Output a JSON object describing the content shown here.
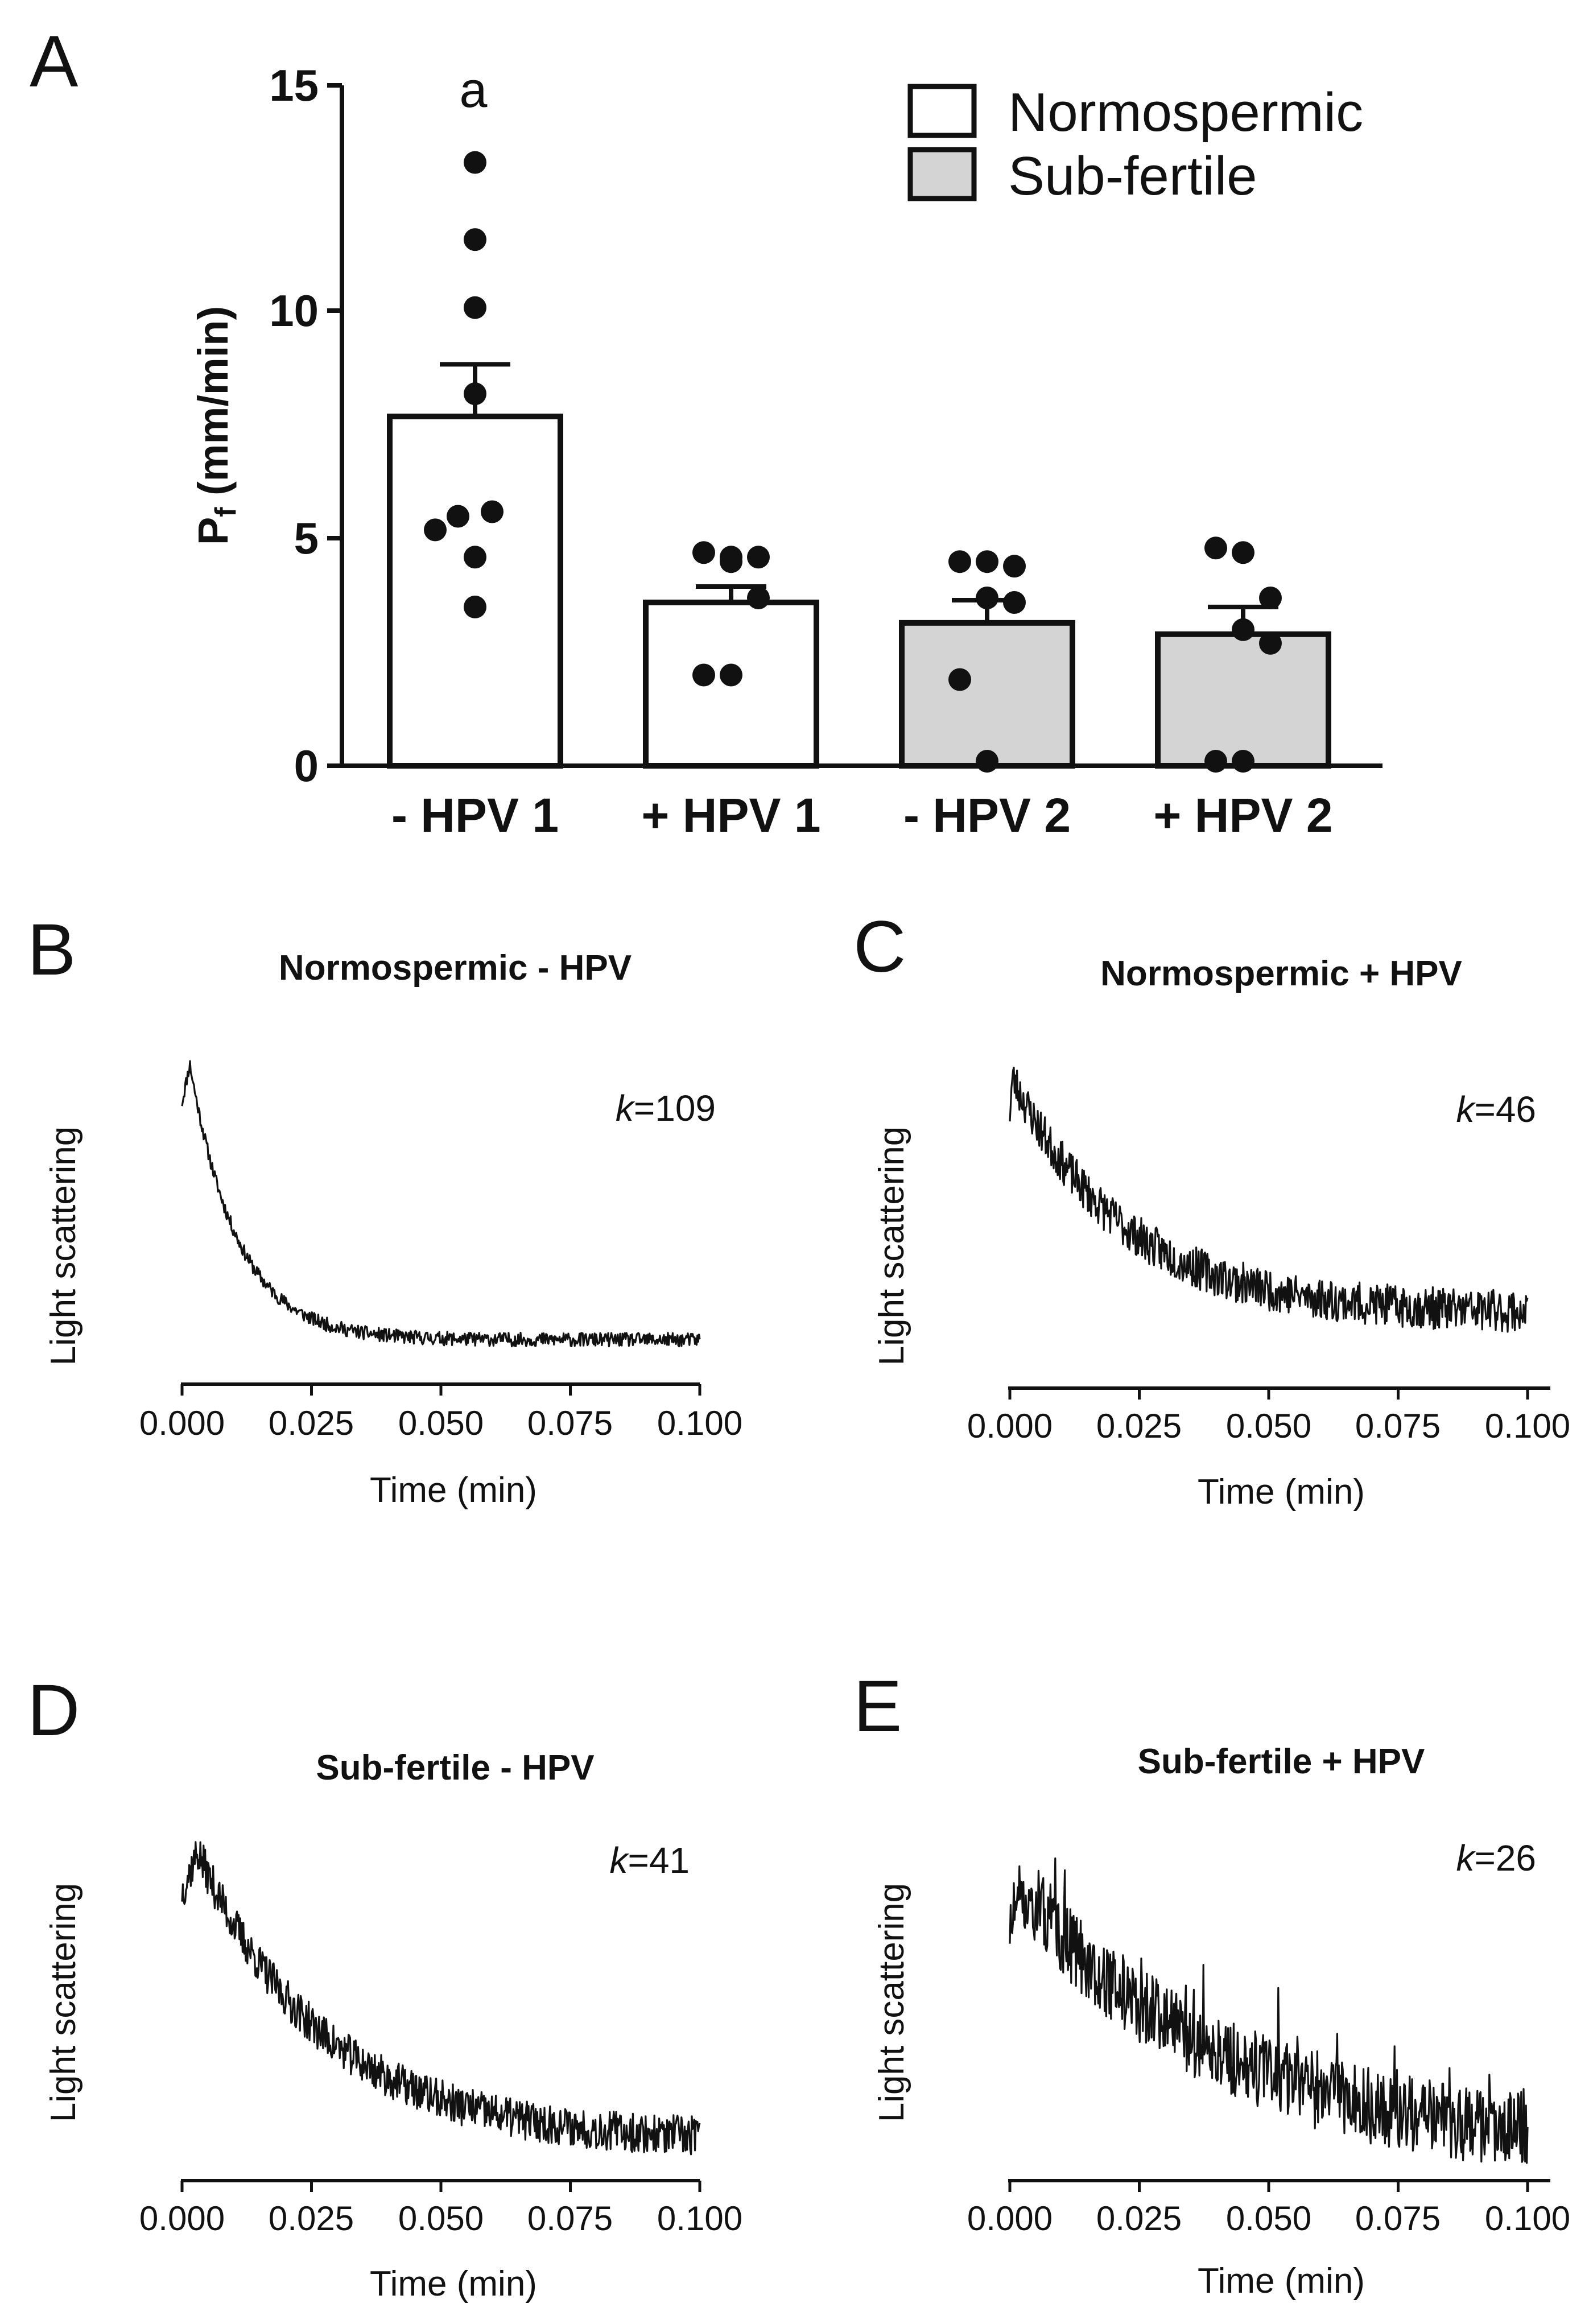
{
  "chart_data": [
    {
      "id": "A",
      "panel_letter": "A",
      "type": "bar",
      "categories": [
        "- HPV 1",
        "+ HPV 1",
        "- HPV 2",
        "+ HPV 2"
      ],
      "values": [
        7.7,
        3.6,
        3.15,
        2.9
      ],
      "sem": [
        1.15,
        0.35,
        0.5,
        0.6
      ],
      "groups": [
        "Normospermic",
        "Normospermic",
        "Sub-fertile",
        "Sub-fertile"
      ],
      "points": [
        [
          13.3,
          11.6,
          10.1,
          8.2,
          5.6,
          5.5,
          5.2,
          4.6,
          3.5
        ],
        [
          4.7,
          4.6,
          4.6,
          4.5,
          3.7,
          2.0,
          2.0
        ],
        [
          4.5,
          4.5,
          4.4,
          3.7,
          3.6,
          1.9,
          0.1
        ],
        [
          4.8,
          4.7,
          3.7,
          3.0,
          2.7,
          0.1,
          0.1
        ]
      ],
      "ylabel_main": "P",
      "ylabel_sub": "f",
      "ylabel_unit": " (mm/min)",
      "ylim": [
        0,
        15
      ],
      "yticks": [
        "0",
        "5",
        "10",
        "15"
      ],
      "annotations": [
        {
          "category": "- HPV 1",
          "text": "a"
        }
      ],
      "legend": {
        "position": "top-right",
        "entries": [
          {
            "label": "Normospermic",
            "color": "#ffffff"
          },
          {
            "label": "Sub-fertile",
            "color": "#d4d4d4"
          }
        ]
      }
    },
    {
      "id": "B",
      "panel_letter": "B",
      "type": "line",
      "title": "Normospermic - HPV",
      "k_symbol": "k",
      "k_value": "=109",
      "k": 109,
      "noise": 0.025,
      "peak_time": 0.0015,
      "xlabel": "Time (min)",
      "ylabel": "Light scattering",
      "xlim": [
        0,
        0.1
      ],
      "xticks": [
        "0.000",
        "0.025",
        "0.050",
        "0.075",
        "0.100"
      ]
    },
    {
      "id": "C",
      "panel_letter": "C",
      "type": "line",
      "title": "Normospermic + HPV",
      "k_symbol": "k",
      "k_value": "=46",
      "k": 46,
      "noise": 0.09,
      "peak_time": 0.0005,
      "xlabel": "Time (min)",
      "ylabel": "Light scattering",
      "xlim": [
        0,
        0.1
      ],
      "xticks": [
        "0.000",
        "0.025",
        "0.050",
        "0.075",
        "0.100"
      ]
    },
    {
      "id": "D",
      "panel_letter": "D",
      "type": "line",
      "title": "Sub-fertile - HPV",
      "k_symbol": "k",
      "k_value": "=41",
      "k": 41,
      "noise": 0.07,
      "peak_time": 0.003,
      "xlabel": "Time (min)",
      "ylabel": "Light scattering",
      "xlim": [
        0,
        0.1
      ],
      "xticks": [
        "0.000",
        "0.025",
        "0.050",
        "0.075",
        "0.100"
      ]
    },
    {
      "id": "E",
      "panel_letter": "E",
      "type": "line",
      "title": "Sub-fertile + HPV",
      "k_symbol": "k",
      "k_value": "=26",
      "k": 26,
      "noise": 0.16,
      "peak_time": 0.003,
      "xlabel": "Time (min)",
      "ylabel": "Light scattering",
      "xlim": [
        0,
        0.1
      ],
      "xticks": [
        "0.000",
        "0.025",
        "0.050",
        "0.075",
        "0.100"
      ]
    }
  ]
}
